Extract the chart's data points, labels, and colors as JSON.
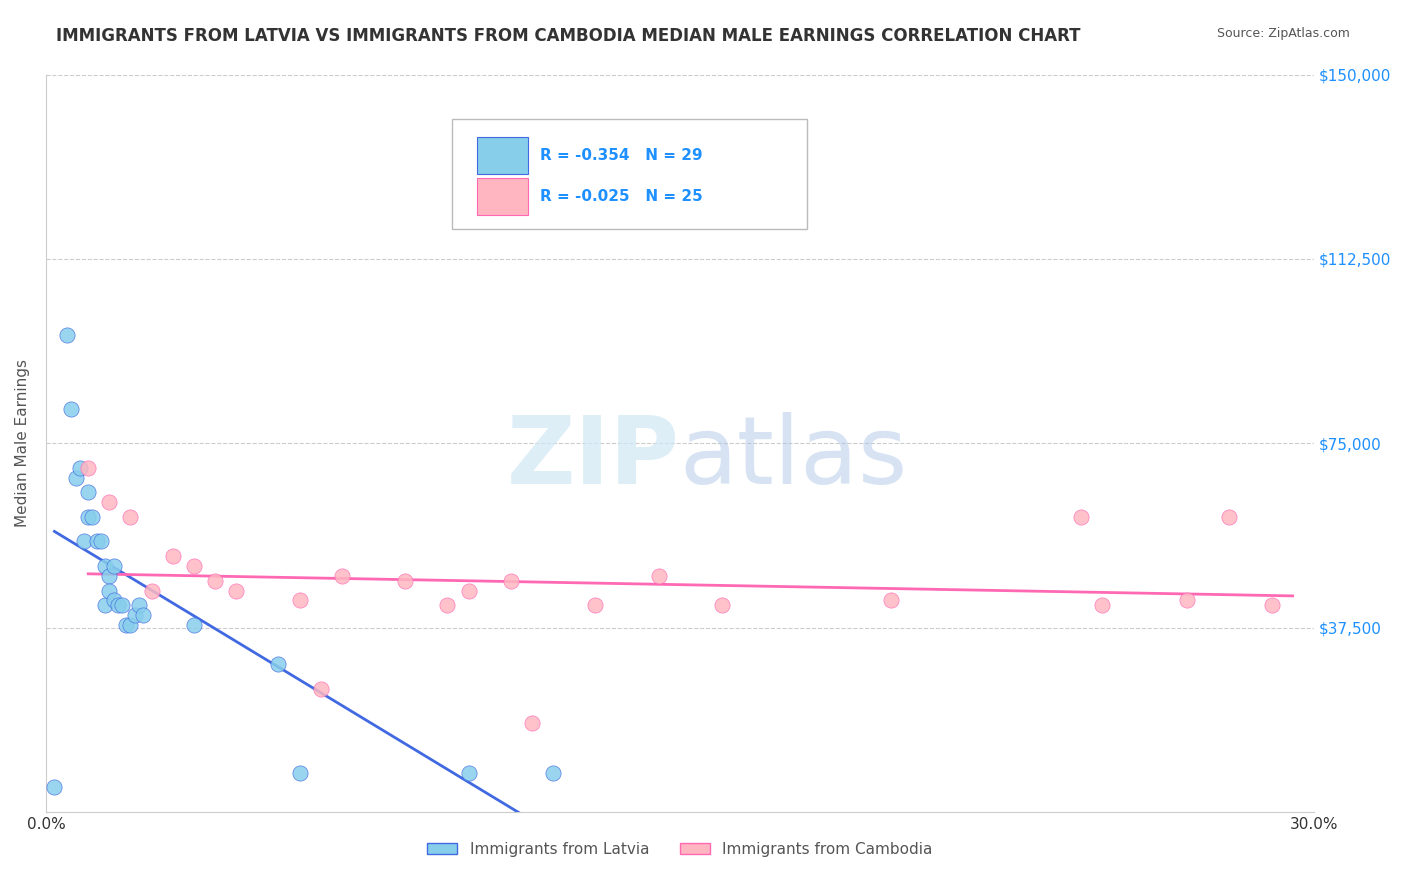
{
  "title": "IMMIGRANTS FROM LATVIA VS IMMIGRANTS FROM CAMBODIA MEDIAN MALE EARNINGS CORRELATION CHART",
  "source": "Source: ZipAtlas.com",
  "xlabel_bottom": "",
  "ylabel": "Median Male Earnings",
  "x_min": 0.0,
  "x_max": 0.3,
  "y_min": 0,
  "y_max": 150000,
  "yticks": [
    0,
    37500,
    75000,
    112500,
    150000
  ],
  "ytick_labels": [
    "",
    "$37,500",
    "$75,000",
    "$112,500",
    "$150,000"
  ],
  "xticks": [
    0.0,
    0.05,
    0.1,
    0.15,
    0.2,
    0.25,
    0.3
  ],
  "xtick_labels": [
    "0.0%",
    "",
    "",
    "",
    "",
    "",
    "30.0%"
  ],
  "legend_r1": "R = -0.354",
  "legend_n1": "N = 29",
  "legend_r2": "R = -0.025",
  "legend_n2": "N = 25",
  "legend_label1": "Immigrants from Latvia",
  "legend_label2": "Immigrants from Cambodia",
  "color_latvia": "#87CEEB",
  "color_cambodia": "#FFB6C1",
  "color_latvia_line": "#4169E1",
  "color_cambodia_line": "#FF69B4",
  "watermark": "ZIPatlas",
  "latvia_x": [
    0.002,
    0.005,
    0.006,
    0.007,
    0.008,
    0.009,
    0.01,
    0.01,
    0.011,
    0.012,
    0.013,
    0.014,
    0.014,
    0.015,
    0.015,
    0.016,
    0.016,
    0.017,
    0.018,
    0.019,
    0.02,
    0.021,
    0.022,
    0.023,
    0.035,
    0.055,
    0.06,
    0.1,
    0.12
  ],
  "latvia_y": [
    5000,
    97000,
    82000,
    68000,
    70000,
    55000,
    65000,
    60000,
    60000,
    55000,
    55000,
    50000,
    42000,
    48000,
    45000,
    50000,
    43000,
    42000,
    42000,
    38000,
    38000,
    40000,
    42000,
    40000,
    38000,
    30000,
    8000,
    8000,
    8000
  ],
  "cambodia_x": [
    0.01,
    0.015,
    0.02,
    0.025,
    0.03,
    0.035,
    0.04,
    0.045,
    0.06,
    0.065,
    0.07,
    0.085,
    0.095,
    0.1,
    0.11,
    0.115,
    0.13,
    0.145,
    0.16,
    0.2,
    0.245,
    0.25,
    0.27,
    0.28,
    0.29
  ],
  "cambodia_y": [
    70000,
    63000,
    60000,
    45000,
    52000,
    50000,
    47000,
    45000,
    43000,
    25000,
    48000,
    47000,
    42000,
    45000,
    47000,
    18000,
    42000,
    48000,
    42000,
    43000,
    60000,
    42000,
    43000,
    60000,
    42000
  ]
}
